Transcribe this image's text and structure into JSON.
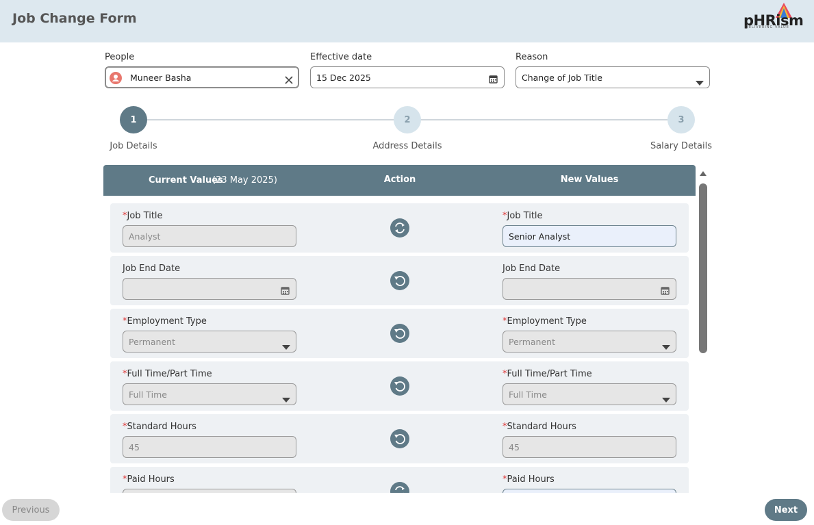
{
  "header": {
    "title": "Job Change Form",
    "logo": "pHRism",
    "tagline": "DELIVERING VALUE"
  },
  "filters": [
    {
      "label": "People",
      "value": "Muneer Basha",
      "control": "person"
    },
    {
      "label": "Effective date",
      "value": "15 Dec 2025",
      "control": "date"
    },
    {
      "label": "Reason",
      "value": "Change of Job Title",
      "control": "select"
    }
  ],
  "steps": [
    {
      "number": 1,
      "label": "Job Details",
      "active": true
    },
    {
      "number": 2,
      "label": "Address Details",
      "active": false
    },
    {
      "number": 3,
      "label": "Salary Details",
      "active": false
    }
  ],
  "table": {
    "headers": {
      "current": "Current Values",
      "current_date": "(23 May 2025)",
      "action": "Action",
      "new": "New Values"
    },
    "required_mark": "*",
    "rows": [
      {
        "label": "Job Title",
        "required": true,
        "control": "text",
        "current": "Analyst",
        "new": "Senior Analyst",
        "action": "swap",
        "edited": true
      },
      {
        "label": "Job End Date",
        "required": false,
        "control": "date",
        "current": null,
        "new": null,
        "action": "undo",
        "edited": false
      },
      {
        "label": "Employment Type",
        "required": true,
        "control": "select",
        "current": "Permanent",
        "new": "Permanent",
        "action": "undo",
        "edited": false
      },
      {
        "label": "Full Time/Part Time",
        "required": true,
        "control": "select",
        "current": "Full Time",
        "new": "Full Time",
        "action": "undo",
        "edited": false
      },
      {
        "label": "Standard Hours",
        "required": true,
        "control": "text",
        "current": "45",
        "new": "45",
        "action": "undo",
        "edited": false
      },
      {
        "label": "Paid Hours",
        "required": true,
        "control": "text",
        "current": null,
        "new": null,
        "action": "swap",
        "edited": true
      }
    ]
  },
  "buttons": {
    "previous": "Previous",
    "next": "Next"
  }
}
